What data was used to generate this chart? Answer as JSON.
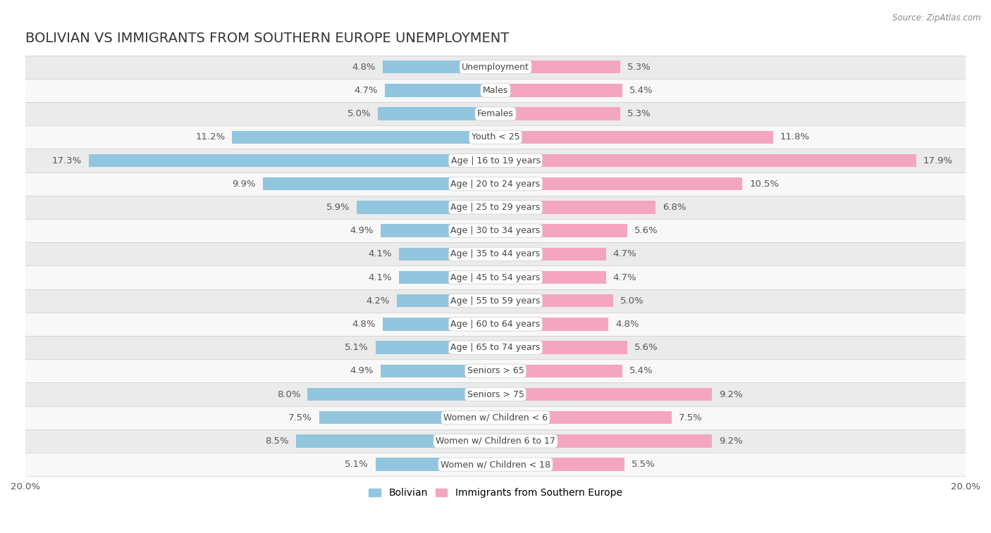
{
  "title": "BOLIVIAN VS IMMIGRANTS FROM SOUTHERN EUROPE UNEMPLOYMENT",
  "source": "Source: ZipAtlas.com",
  "categories": [
    "Unemployment",
    "Males",
    "Females",
    "Youth < 25",
    "Age | 16 to 19 years",
    "Age | 20 to 24 years",
    "Age | 25 to 29 years",
    "Age | 30 to 34 years",
    "Age | 35 to 44 years",
    "Age | 45 to 54 years",
    "Age | 55 to 59 years",
    "Age | 60 to 64 years",
    "Age | 65 to 74 years",
    "Seniors > 65",
    "Seniors > 75",
    "Women w/ Children < 6",
    "Women w/ Children 6 to 17",
    "Women w/ Children < 18"
  ],
  "bolivian": [
    4.8,
    4.7,
    5.0,
    11.2,
    17.3,
    9.9,
    5.9,
    4.9,
    4.1,
    4.1,
    4.2,
    4.8,
    5.1,
    4.9,
    8.0,
    7.5,
    8.5,
    5.1
  ],
  "immigrants": [
    5.3,
    5.4,
    5.3,
    11.8,
    17.9,
    10.5,
    6.8,
    5.6,
    4.7,
    4.7,
    5.0,
    4.8,
    5.6,
    5.4,
    9.2,
    7.5,
    9.2,
    5.5
  ],
  "bolivian_color": "#92c5de",
  "immigrants_color": "#f4a6c0",
  "bolivian_color_dark": "#6baed6",
  "immigrants_color_dark": "#e87fa0",
  "row_bg_light": "#ebebeb",
  "row_bg_white": "#f8f8f8",
  "bar_height": 0.55,
  "xlim": 20.0,
  "axis_label": "20.0%",
  "title_fontsize": 14,
  "label_fontsize": 9.5,
  "cat_fontsize": 9,
  "source_fontsize": 8.5,
  "legend_fontsize": 10
}
